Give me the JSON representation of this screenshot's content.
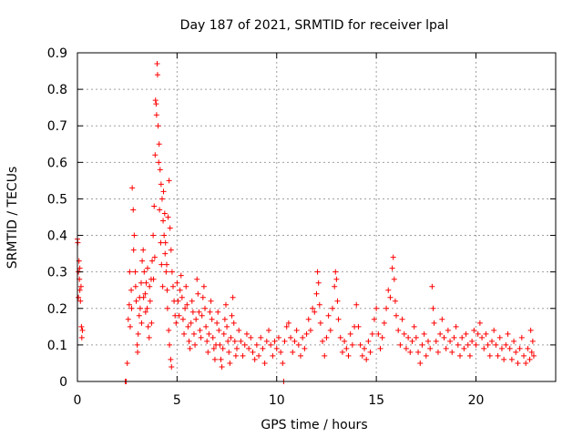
{
  "chart_data": {
    "type": "scatter",
    "title": "Day 187 of 2021, SRMTID for receiver lpal",
    "xlabel": "GPS time / hours",
    "ylabel": "SRMTID / TECUs",
    "xlim": [
      0,
      24
    ],
    "ylim": [
      0,
      0.9
    ],
    "xticks": [
      0,
      5,
      10,
      15,
      20
    ],
    "yticks": [
      0,
      0.1,
      0.2,
      0.3,
      0.4,
      0.5,
      0.6,
      0.7,
      0.8,
      0.9
    ],
    "grid": true,
    "marker": "+",
    "color": "#ff0000",
    "series": [
      {
        "name": "SRMTID",
        "points": [
          [
            0.0,
            0.39
          ],
          [
            0.02,
            0.38
          ],
          [
            0.05,
            0.3
          ],
          [
            0.08,
            0.33
          ],
          [
            0.1,
            0.28
          ],
          [
            0.12,
            0.25
          ],
          [
            0.15,
            0.22
          ],
          [
            0.18,
            0.26
          ],
          [
            0.2,
            0.15
          ],
          [
            0.22,
            0.12
          ],
          [
            0.25,
            0.14
          ],
          [
            0.05,
            0.23
          ],
          [
            0.12,
            0.31
          ],
          [
            2.4,
            0.0
          ],
          [
            2.45,
            0.0
          ],
          [
            2.5,
            0.05
          ],
          [
            2.55,
            0.17
          ],
          [
            2.6,
            0.21
          ],
          [
            2.65,
            0.15
          ],
          [
            2.7,
            0.25
          ],
          [
            2.75,
            0.53
          ],
          [
            2.8,
            0.47
          ],
          [
            2.85,
            0.4
          ],
          [
            2.9,
            0.3
          ],
          [
            2.95,
            0.22
          ],
          [
            3.0,
            0.1
          ],
          [
            3.05,
            0.13
          ],
          [
            3.1,
            0.18
          ],
          [
            3.15,
            0.2
          ],
          [
            3.2,
            0.27
          ],
          [
            3.25,
            0.33
          ],
          [
            3.3,
            0.36
          ],
          [
            3.35,
            0.3
          ],
          [
            3.4,
            0.24
          ],
          [
            3.45,
            0.27
          ],
          [
            3.5,
            0.2
          ],
          [
            3.55,
            0.15
          ],
          [
            3.6,
            0.12
          ],
          [
            3.65,
            0.22
          ],
          [
            3.7,
            0.28
          ],
          [
            3.75,
            0.33
          ],
          [
            3.8,
            0.4
          ],
          [
            3.85,
            0.48
          ],
          [
            3.9,
            0.62
          ],
          [
            3.95,
            0.76
          ],
          [
            4.0,
            0.87
          ],
          [
            4.02,
            0.84
          ],
          [
            4.05,
            0.7
          ],
          [
            4.1,
            0.65
          ],
          [
            4.15,
            0.58
          ],
          [
            4.2,
            0.54
          ],
          [
            4.25,
            0.5
          ],
          [
            4.3,
            0.44
          ],
          [
            4.35,
            0.4
          ],
          [
            4.4,
            0.35
          ],
          [
            4.45,
            0.3
          ],
          [
            4.5,
            0.25
          ],
          [
            4.55,
            0.45
          ],
          [
            4.6,
            0.55
          ],
          [
            4.65,
            0.42
          ],
          [
            4.7,
            0.36
          ],
          [
            4.75,
            0.3
          ],
          [
            4.8,
            0.26
          ],
          [
            4.85,
            0.22
          ],
          [
            4.9,
            0.18
          ],
          [
            4.95,
            0.16
          ],
          [
            3.92,
            0.77
          ],
          [
            3.97,
            0.73
          ],
          [
            4.08,
            0.6
          ],
          [
            4.12,
            0.47
          ],
          [
            4.18,
            0.38
          ],
          [
            4.22,
            0.32
          ],
          [
            4.28,
            0.26
          ],
          [
            4.32,
            0.52
          ],
          [
            4.38,
            0.46
          ],
          [
            4.42,
            0.38
          ],
          [
            4.48,
            0.32
          ],
          [
            4.52,
            0.2
          ],
          [
            4.58,
            0.14
          ],
          [
            4.62,
            0.1
          ],
          [
            4.68,
            0.06
          ],
          [
            4.72,
            0.04
          ],
          [
            3.88,
            0.34
          ],
          [
            3.82,
            0.28
          ],
          [
            3.72,
            0.16
          ],
          [
            3.62,
            0.26
          ],
          [
            3.52,
            0.31
          ],
          [
            3.42,
            0.19
          ],
          [
            3.32,
            0.23
          ],
          [
            3.22,
            0.16
          ],
          [
            3.12,
            0.23
          ],
          [
            3.02,
            0.08
          ],
          [
            2.92,
            0.26
          ],
          [
            2.82,
            0.36
          ],
          [
            2.72,
            0.2
          ],
          [
            2.62,
            0.3
          ],
          [
            5.0,
            0.27
          ],
          [
            5.05,
            0.22
          ],
          [
            5.1,
            0.18
          ],
          [
            5.15,
            0.25
          ],
          [
            5.2,
            0.29
          ],
          [
            5.25,
            0.23
          ],
          [
            5.3,
            0.17
          ],
          [
            5.35,
            0.13
          ],
          [
            5.4,
            0.2
          ],
          [
            5.45,
            0.26
          ],
          [
            5.5,
            0.21
          ],
          [
            5.55,
            0.15
          ],
          [
            5.6,
            0.11
          ],
          [
            5.65,
            0.09
          ],
          [
            5.7,
            0.16
          ],
          [
            5.75,
            0.22
          ],
          [
            5.8,
            0.19
          ],
          [
            5.85,
            0.13
          ],
          [
            5.9,
            0.1
          ],
          [
            5.95,
            0.17
          ],
          [
            6.0,
            0.28
          ],
          [
            6.05,
            0.24
          ],
          [
            6.1,
            0.19
          ],
          [
            6.15,
            0.14
          ],
          [
            6.2,
            0.12
          ],
          [
            6.25,
            0.18
          ],
          [
            6.3,
            0.23
          ],
          [
            6.35,
            0.26
          ],
          [
            6.4,
            0.2
          ],
          [
            6.45,
            0.15
          ],
          [
            6.5,
            0.11
          ],
          [
            6.55,
            0.08
          ],
          [
            6.6,
            0.13
          ],
          [
            6.65,
            0.19
          ],
          [
            6.7,
            0.22
          ],
          [
            6.75,
            0.17
          ],
          [
            6.8,
            0.12
          ],
          [
            6.85,
            0.09
          ],
          [
            6.9,
            0.06
          ],
          [
            6.95,
            0.1
          ],
          [
            7.0,
            0.16
          ],
          [
            7.05,
            0.19
          ],
          [
            7.1,
            0.14
          ],
          [
            7.15,
            0.1
          ],
          [
            7.2,
            0.06
          ],
          [
            7.25,
            0.04
          ],
          [
            7.3,
            0.09
          ],
          [
            7.35,
            0.13
          ],
          [
            7.4,
            0.17
          ],
          [
            7.45,
            0.21
          ],
          [
            7.5,
            0.15
          ],
          [
            7.55,
            0.11
          ],
          [
            7.6,
            0.08
          ],
          [
            7.65,
            0.05
          ],
          [
            7.7,
            0.12
          ],
          [
            7.75,
            0.18
          ],
          [
            7.8,
            0.23
          ],
          [
            7.85,
            0.16
          ],
          [
            7.9,
            0.11
          ],
          [
            7.95,
            0.07
          ],
          [
            8.0,
            0.09
          ],
          [
            8.1,
            0.14
          ],
          [
            8.2,
            0.11
          ],
          [
            8.3,
            0.07
          ],
          [
            8.4,
            0.1
          ],
          [
            8.5,
            0.13
          ],
          [
            8.6,
            0.09
          ],
          [
            8.7,
            0.12
          ],
          [
            8.8,
            0.08
          ],
          [
            8.9,
            0.06
          ],
          [
            9.0,
            0.1
          ],
          [
            9.1,
            0.07
          ],
          [
            9.2,
            0.12
          ],
          [
            9.3,
            0.09
          ],
          [
            9.4,
            0.05
          ],
          [
            9.5,
            0.11
          ],
          [
            9.6,
            0.14
          ],
          [
            9.7,
            0.1
          ],
          [
            9.8,
            0.07
          ],
          [
            9.9,
            0.11
          ],
          [
            10.0,
            0.09
          ],
          [
            10.1,
            0.12
          ],
          [
            10.2,
            0.08
          ],
          [
            10.3,
            0.05
          ],
          [
            10.35,
            0.0
          ],
          [
            10.4,
            0.11
          ],
          [
            10.5,
            0.15
          ],
          [
            10.6,
            0.16
          ],
          [
            10.7,
            0.12
          ],
          [
            10.8,
            0.08
          ],
          [
            10.9,
            0.11
          ],
          [
            11.0,
            0.14
          ],
          [
            11.1,
            0.1
          ],
          [
            11.2,
            0.07
          ],
          [
            11.3,
            0.12
          ],
          [
            11.4,
            0.09
          ],
          [
            11.5,
            0.13
          ],
          [
            11.6,
            0.17
          ],
          [
            11.7,
            0.14
          ],
          [
            11.8,
            0.2
          ],
          [
            11.9,
            0.19
          ],
          [
            12.0,
            0.24
          ],
          [
            12.05,
            0.3
          ],
          [
            12.1,
            0.27
          ],
          [
            12.15,
            0.21
          ],
          [
            12.2,
            0.16
          ],
          [
            12.3,
            0.11
          ],
          [
            12.4,
            0.07
          ],
          [
            12.5,
            0.12
          ],
          [
            12.6,
            0.18
          ],
          [
            12.7,
            0.14
          ],
          [
            12.8,
            0.2
          ],
          [
            12.9,
            0.26
          ],
          [
            12.95,
            0.3
          ],
          [
            13.0,
            0.28
          ],
          [
            13.05,
            0.22
          ],
          [
            13.1,
            0.17
          ],
          [
            13.2,
            0.12
          ],
          [
            13.3,
            0.08
          ],
          [
            13.4,
            0.11
          ],
          [
            13.5,
            0.09
          ],
          [
            13.6,
            0.07
          ],
          [
            13.7,
            0.13
          ],
          [
            13.8,
            0.1
          ],
          [
            13.9,
            0.15
          ],
          [
            14.0,
            0.21
          ],
          [
            14.1,
            0.15
          ],
          [
            14.2,
            0.1
          ],
          [
            14.3,
            0.07
          ],
          [
            14.4,
            0.09
          ],
          [
            14.5,
            0.06
          ],
          [
            14.6,
            0.11
          ],
          [
            14.7,
            0.08
          ],
          [
            14.8,
            0.13
          ],
          [
            14.9,
            0.17
          ],
          [
            15.0,
            0.2
          ],
          [
            15.1,
            0.13
          ],
          [
            15.2,
            0.09
          ],
          [
            15.3,
            0.12
          ],
          [
            15.4,
            0.16
          ],
          [
            15.5,
            0.2
          ],
          [
            15.6,
            0.25
          ],
          [
            15.7,
            0.23
          ],
          [
            15.8,
            0.31
          ],
          [
            15.85,
            0.34
          ],
          [
            15.9,
            0.28
          ],
          [
            15.95,
            0.22
          ],
          [
            16.0,
            0.18
          ],
          [
            16.1,
            0.14
          ],
          [
            16.2,
            0.1
          ],
          [
            16.3,
            0.17
          ],
          [
            16.4,
            0.13
          ],
          [
            16.5,
            0.09
          ],
          [
            16.6,
            0.12
          ],
          [
            16.7,
            0.08
          ],
          [
            16.8,
            0.11
          ],
          [
            16.9,
            0.15
          ],
          [
            17.0,
            0.12
          ],
          [
            17.1,
            0.08
          ],
          [
            17.2,
            0.05
          ],
          [
            17.3,
            0.1
          ],
          [
            17.4,
            0.13
          ],
          [
            17.5,
            0.07
          ],
          [
            17.6,
            0.11
          ],
          [
            17.7,
            0.09
          ],
          [
            17.8,
            0.26
          ],
          [
            17.85,
            0.2
          ],
          [
            17.9,
            0.16
          ],
          [
            18.0,
            0.11
          ],
          [
            18.1,
            0.08
          ],
          [
            18.2,
            0.13
          ],
          [
            18.3,
            0.17
          ],
          [
            18.4,
            0.12
          ],
          [
            18.5,
            0.09
          ],
          [
            18.6,
            0.14
          ],
          [
            18.7,
            0.11
          ],
          [
            18.8,
            0.08
          ],
          [
            18.9,
            0.12
          ],
          [
            19.0,
            0.15
          ],
          [
            19.1,
            0.1
          ],
          [
            19.2,
            0.07
          ],
          [
            19.3,
            0.12
          ],
          [
            19.4,
            0.09
          ],
          [
            19.5,
            0.13
          ],
          [
            19.6,
            0.1
          ],
          [
            19.7,
            0.07
          ],
          [
            19.8,
            0.11
          ],
          [
            19.9,
            0.14
          ],
          [
            20.0,
            0.1
          ],
          [
            20.1,
            0.13
          ],
          [
            20.2,
            0.16
          ],
          [
            20.3,
            0.12
          ],
          [
            20.4,
            0.09
          ],
          [
            20.5,
            0.13
          ],
          [
            20.6,
            0.1
          ],
          [
            20.7,
            0.07
          ],
          [
            20.8,
            0.11
          ],
          [
            20.9,
            0.14
          ],
          [
            21.0,
            0.1
          ],
          [
            21.1,
            0.07
          ],
          [
            21.2,
            0.12
          ],
          [
            21.3,
            0.09
          ],
          [
            21.4,
            0.06
          ],
          [
            21.5,
            0.1
          ],
          [
            21.6,
            0.13
          ],
          [
            21.7,
            0.09
          ],
          [
            21.8,
            0.06
          ],
          [
            21.9,
            0.11
          ],
          [
            22.0,
            0.08
          ],
          [
            22.1,
            0.05
          ],
          [
            22.2,
            0.09
          ],
          [
            22.3,
            0.12
          ],
          [
            22.4,
            0.07
          ],
          [
            22.5,
            0.05
          ],
          [
            22.6,
            0.09
          ],
          [
            22.7,
            0.06
          ],
          [
            22.75,
            0.14
          ],
          [
            22.8,
            0.08
          ],
          [
            22.85,
            0.11
          ],
          [
            22.9,
            0.07
          ]
        ]
      }
    ]
  }
}
